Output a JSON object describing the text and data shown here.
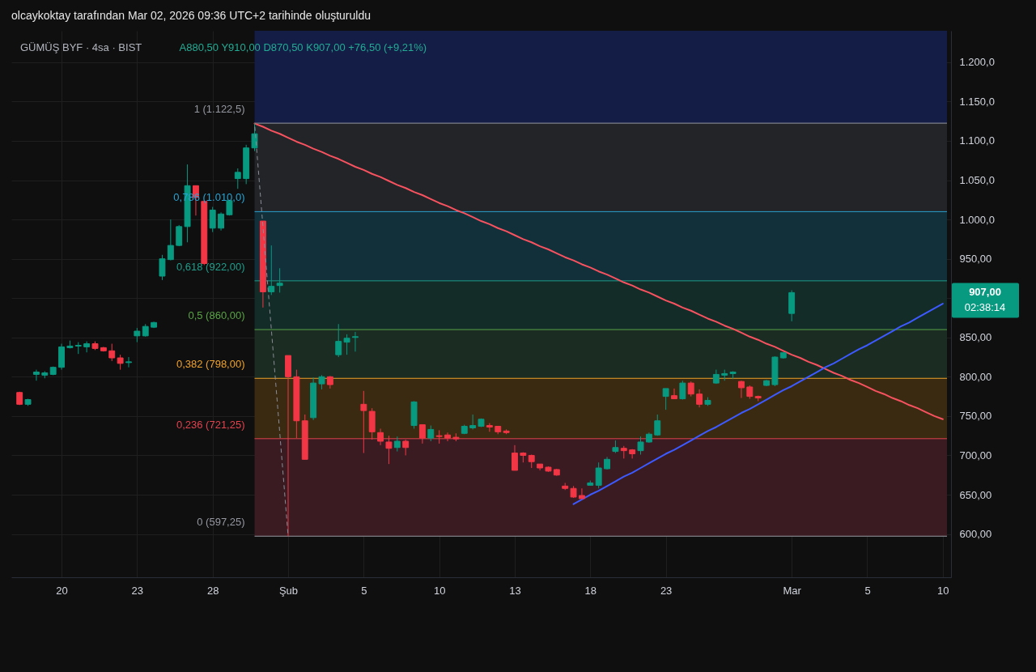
{
  "chart_data": {
    "type": "candlestick",
    "title": "GÜMÜŞ BYF · 4sa · BIST",
    "subtitle": "A880,50 Y910,00 D870,50 K907,00 +76,50 (+9,21%)",
    "annotations": [
      "olcaykoktay tarafından Mar 02, 2026 09:36 UTC+2 tarihinde oluşturuldu",
      "907,00",
      "02:38:14"
    ],
    "categories": [
      null,
      null,
      null,
      null,
      null,
      "20",
      null,
      null,
      null,
      null,
      null,
      null,
      null,
      null,
      "23",
      null,
      null,
      null,
      null,
      null,
      null,
      null,
      null,
      "28",
      null,
      null,
      null,
      null,
      null,
      null,
      null,
      null,
      "Şub",
      null,
      null,
      null,
      null,
      null,
      null,
      null,
      null,
      "5",
      null,
      null,
      null,
      null,
      null,
      null,
      null,
      null,
      "10",
      null,
      null,
      null,
      null,
      null,
      null,
      null,
      null,
      "13",
      null,
      null,
      null,
      null,
      null,
      null,
      null,
      null,
      "18",
      null,
      null,
      null,
      null,
      null,
      null,
      null,
      null,
      "23",
      null,
      null,
      null,
      null,
      null,
      null,
      null,
      null,
      null,
      null,
      null,
      null,
      null,
      null,
      "Mar",
      null,
      null,
      null,
      null,
      null,
      null,
      null,
      null,
      "5",
      null,
      null,
      null,
      null,
      null,
      null,
      null,
      null,
      "10"
    ],
    "ohlc": [
      [
        780,
        781,
        764,
        765
      ],
      [
        765,
        772,
        763,
        771
      ],
      [
        803,
        809,
        795,
        806
      ],
      [
        802,
        807,
        798,
        805
      ],
      [
        803,
        813,
        802,
        812
      ],
      [
        812,
        842,
        809,
        838
      ],
      [
        837,
        846,
        836,
        839
      ],
      [
        839,
        844,
        829,
        840
      ],
      [
        838,
        845,
        831,
        842
      ],
      [
        842,
        845,
        834,
        836
      ],
      [
        837,
        838,
        832,
        833
      ],
      [
        833,
        842,
        820,
        824
      ],
      [
        824,
        828,
        809,
        817
      ],
      [
        818,
        825,
        812,
        819
      ],
      [
        852,
        862,
        844,
        858
      ],
      [
        852,
        867,
        851,
        864
      ],
      [
        863,
        870,
        862,
        869
      ],
      [
        928,
        955,
        923,
        950
      ],
      [
        949,
        1000,
        948,
        967
      ],
      [
        967,
        993,
        966,
        991
      ],
      [
        991,
        1070,
        971,
        1043
      ],
      [
        1043,
        1043,
        1005,
        1028
      ],
      [
        1023,
        1024,
        942,
        944
      ],
      [
        989,
        1016,
        984,
        1012
      ],
      [
        989,
        1009,
        986,
        1007
      ],
      [
        1006,
        1025,
        1005,
        1024
      ],
      [
        1052,
        1065,
        1039,
        1060
      ],
      [
        1052,
        1095,
        1045,
        1091
      ],
      [
        1091,
        1122.5,
        1087,
        1109
      ],
      [
        998,
        998,
        888,
        908
      ],
      [
        908,
        967,
        904,
        915
      ],
      [
        916,
        938,
        907,
        919
      ],
      [
        827,
        827,
        597.25,
        800
      ],
      [
        800,
        809,
        722,
        744
      ],
      [
        744,
        752,
        695,
        695
      ],
      [
        748,
        799,
        745,
        792
      ],
      [
        791,
        802,
        784,
        800
      ],
      [
        800,
        801,
        785,
        790
      ],
      [
        828,
        867,
        825,
        845
      ],
      [
        844,
        854,
        828,
        849
      ],
      [
        850,
        857,
        832,
        851
      ],
      [
        765,
        782,
        703,
        757
      ],
      [
        756,
        760,
        720,
        730
      ],
      [
        729,
        734,
        713,
        718
      ],
      [
        717,
        725,
        689,
        709
      ],
      [
        710,
        724,
        705,
        718
      ],
      [
        718,
        720,
        700,
        710
      ],
      [
        738,
        769,
        734,
        768
      ],
      [
        739,
        739,
        715,
        722
      ],
      [
        722,
        738,
        718,
        733
      ],
      [
        725,
        732,
        715,
        724
      ],
      [
        726,
        729,
        718,
        722
      ],
      [
        723,
        728,
        718,
        721
      ],
      [
        728,
        739,
        727,
        737
      ],
      [
        735,
        752,
        733,
        738
      ],
      [
        737,
        747,
        736,
        746
      ],
      [
        738,
        741,
        730,
        736
      ],
      [
        737,
        737,
        727,
        730
      ],
      [
        731,
        733,
        727,
        729
      ],
      [
        703,
        713,
        681,
        681
      ],
      [
        703,
        704,
        691,
        700
      ],
      [
        700,
        701,
        684,
        692
      ],
      [
        689,
        689,
        681,
        684
      ],
      [
        685,
        686,
        679,
        680
      ],
      [
        682,
        683,
        674,
        675
      ],
      [
        661,
        665,
        656,
        658
      ],
      [
        658,
        661,
        646,
        647
      ],
      [
        649,
        658,
        645,
        645
      ],
      [
        662,
        668,
        662,
        665
      ],
      [
        662,
        691,
        658,
        684
      ],
      [
        683,
        698,
        682,
        695
      ],
      [
        705,
        719,
        703,
        710
      ],
      [
        709,
        712,
        696,
        706
      ],
      [
        707,
        708,
        696,
        702
      ],
      [
        706,
        724,
        701,
        717
      ],
      [
        717,
        729,
        716,
        727
      ],
      [
        726,
        752,
        725,
        744
      ],
      [
        775,
        785,
        758,
        785
      ],
      [
        776,
        785,
        772,
        772
      ],
      [
        772,
        795,
        771,
        792
      ],
      [
        792,
        794,
        775,
        778
      ],
      [
        778,
        784,
        761,
        765
      ],
      [
        765,
        774,
        763,
        770
      ],
      [
        792,
        809,
        791,
        803
      ],
      [
        802,
        809,
        795,
        804
      ],
      [
        804,
        807,
        797,
        806
      ],
      [
        794,
        795,
        773,
        786
      ],
      [
        787,
        789,
        772,
        775
      ],
      [
        775,
        776,
        769,
        773
      ],
      [
        789,
        796,
        788,
        795
      ],
      [
        790,
        826,
        788,
        825
      ],
      [
        824,
        831,
        823,
        830.5
      ],
      [
        880.5,
        910,
        870.5,
        907
      ],
      null,
      null,
      null,
      null,
      null,
      null,
      null,
      null,
      null,
      null,
      null,
      null,
      null,
      null,
      null,
      null,
      null,
      null
    ],
    "colors": [
      "#f23645",
      "#089981",
      "#089981",
      "#089981",
      "#089981",
      "#089981",
      "#089981",
      "#089981",
      "#089981",
      "#f23645",
      "#f23645",
      "#f23645",
      "#f23645",
      "#089981",
      "#089981",
      "#089981",
      "#089981",
      "#089981",
      "#089981",
      "#089981",
      "#089981",
      "#f23645",
      "#f23645",
      "#089981",
      "#089981",
      "#089981",
      "#089981",
      "#089981",
      "#089981",
      "#f23645",
      "#089981",
      "#089981",
      "#f23645",
      "#f23645",
      "#f23645",
      "#089981",
      "#089981",
      "#f23645",
      "#089981",
      "#089981",
      "#089981",
      "#f23645",
      "#f23645",
      "#f23645",
      "#f23645",
      "#089981",
      "#f23645",
      "#089981",
      "#f23645",
      "#089981",
      "#f23645",
      "#f23645",
      "#f23645",
      "#089981",
      "#089981",
      "#089981",
      "#f23645",
      "#f23645",
      "#f23645",
      "#f23645",
      "#f23645",
      "#f23645",
      "#f23645",
      "#f23645",
      "#f23645",
      "#f23645",
      "#f23645",
      "#f23645",
      "#089981",
      "#089981",
      "#089981",
      "#089981",
      "#f23645",
      "#f23645",
      "#089981",
      "#089981",
      "#089981",
      "#089981",
      "#f23645",
      "#089981",
      "#f23645",
      "#f23645",
      "#089981",
      "#089981",
      "#089981",
      "#089981",
      "#f23645",
      "#f23645",
      "#f23645",
      "#089981",
      "#089981",
      "#089981",
      "#089981",
      null,
      null,
      null,
      null,
      null,
      null,
      null,
      null,
      null,
      null,
      null,
      null,
      null,
      null,
      null,
      null,
      null,
      null
    ],
    "series": [
      {
        "type": "line",
        "color": "#f7525f",
        "values": [
          null,
          null,
          null,
          null,
          null,
          null,
          null,
          null,
          null,
          null,
          null,
          null,
          null,
          null,
          null,
          null,
          null,
          null,
          null,
          null,
          null,
          null,
          null,
          null,
          null,
          null,
          null,
          null,
          1122,
          1118,
          1113,
          1109,
          1104,
          1099,
          1095,
          1090,
          1086,
          1081,
          1077,
          1072,
          1067,
          1063,
          1058,
          1054,
          1049,
          1044,
          1040,
          1035,
          1031,
          1026,
          1021,
          1017,
          1012,
          1008,
          1003,
          998,
          994,
          989,
          985,
          980,
          975,
          971,
          966,
          962,
          957,
          952,
          948,
          943,
          939,
          934,
          930,
          925,
          920,
          916,
          911,
          907,
          902,
          897,
          893,
          888,
          884,
          879,
          874,
          870,
          865,
          861,
          856,
          851,
          847,
          842,
          838,
          833,
          828,
          824,
          819,
          815,
          810,
          805,
          801,
          796,
          792,
          787,
          782,
          778,
          773,
          769,
          764,
          760,
          755,
          750,
          746
        ]
      },
      {
        "type": "line",
        "color": "#3d5afe",
        "values": [
          null,
          null,
          null,
          null,
          null,
          null,
          null,
          null,
          null,
          null,
          null,
          null,
          null,
          null,
          null,
          null,
          null,
          null,
          null,
          null,
          null,
          null,
          null,
          null,
          null,
          null,
          null,
          null,
          null,
          null,
          null,
          null,
          null,
          null,
          null,
          null,
          null,
          null,
          null,
          null,
          null,
          null,
          null,
          null,
          null,
          null,
          null,
          null,
          null,
          null,
          null,
          null,
          null,
          null,
          null,
          null,
          null,
          null,
          null,
          null,
          null,
          null,
          null,
          null,
          null,
          null,
          638,
          644,
          650,
          655,
          661,
          667,
          673,
          678,
          684,
          690,
          696,
          702,
          707,
          713,
          719,
          725,
          731,
          736,
          742,
          748,
          754,
          759,
          765,
          771,
          777,
          783,
          788,
          794,
          800,
          806,
          812,
          817,
          823,
          829,
          835,
          840,
          846,
          852,
          858,
          864,
          869,
          875,
          881,
          887,
          893
        ]
      },
      {
        "type": "line",
        "color": "#8a8d96",
        "line_style": "dashed",
        "values": [
          null,
          null,
          null,
          null,
          null,
          null,
          null,
          null,
          null,
          null,
          null,
          null,
          null,
          null,
          null,
          null,
          null,
          null,
          null,
          null,
          null,
          null,
          null,
          null,
          null,
          null,
          null,
          null,
          1122,
          991,
          860,
          729,
          597,
          null,
          null,
          null,
          null,
          null,
          null,
          null,
          null,
          null,
          null,
          null,
          null,
          null,
          null,
          null,
          null,
          null,
          null,
          null,
          null,
          null,
          null,
          null,
          null,
          null,
          null,
          null,
          null,
          null,
          null,
          null,
          null,
          null,
          null,
          null,
          null,
          null,
          null,
          null,
          null,
          null,
          null,
          null,
          null,
          null,
          null,
          null,
          null,
          null,
          null,
          null,
          null,
          null,
          null,
          null,
          null,
          null,
          null,
          null,
          null,
          null,
          null,
          null,
          null,
          null,
          null,
          null,
          null,
          null,
          null,
          null,
          null,
          null,
          null,
          null,
          null,
          null,
          null
        ]
      }
    ],
    "ylim": [
      545,
      1240
    ],
    "yticks": [
      {
        "value": 600,
        "label": "600,00"
      },
      {
        "value": 650,
        "label": "650,00"
      },
      {
        "value": 700,
        "label": "700,00"
      },
      {
        "value": 750,
        "label": "750,00"
      },
      {
        "value": 800,
        "label": "800,00"
      },
      {
        "value": 850,
        "label": "850,00"
      },
      {
        "value": 900,
        "label": null
      },
      {
        "value": 950,
        "label": "950,00"
      },
      {
        "value": 1000,
        "label": "1.000,0"
      },
      {
        "value": 1050,
        "label": "1.050,0"
      },
      {
        "value": 1100,
        "label": "1.100,0"
      },
      {
        "value": 1150,
        "label": "1.150,0"
      },
      {
        "value": 1200,
        "label": "1.200,0"
      }
    ],
    "grid": true,
    "ref_lines": [
      {
        "axis": "y",
        "value": 1122.5,
        "label": "1 (1.122,5)",
        "color": "#9598a1"
      },
      {
        "axis": "y",
        "value": 1010,
        "label": "0,786 (1.010,0)",
        "color": "#2aa3d3"
      },
      {
        "axis": "y",
        "value": 922,
        "label": "0,618 (922,00)",
        "color": "#1f9e8b"
      },
      {
        "axis": "y",
        "value": 860,
        "label": "0,5 (860,00)",
        "color": "#5aa447"
      },
      {
        "axis": "y",
        "value": 798,
        "label": "0,382 (798,00)",
        "color": "#f0a22a"
      },
      {
        "axis": "y",
        "value": 721.25,
        "label": "0,236 (721,25)",
        "color": "#e2434f"
      },
      {
        "axis": "y",
        "value": 597.25,
        "label": "0 (597,25)",
        "color": "#9598a1"
      }
    ],
    "bands": [
      {
        "axis": "y",
        "from": 597.25,
        "to": 721.25,
        "color": "#3a1b22"
      },
      {
        "axis": "y",
        "from": 721.25,
        "to": 798,
        "color": "#3b2a12"
      },
      {
        "axis": "y",
        "from": 798,
        "to": 860,
        "color": "#1b2d22"
      },
      {
        "axis": "y",
        "from": 860,
        "to": 922,
        "color": "#132c28"
      },
      {
        "axis": "y",
        "from": 922,
        "to": 1010,
        "color": "#11303a"
      },
      {
        "axis": "y",
        "from": 1010,
        "to": 1122.5,
        "color": "#222427"
      },
      {
        "axis": "y",
        "from": 1122.5,
        "to": 1240,
        "color": "#141d45"
      }
    ]
  }
}
